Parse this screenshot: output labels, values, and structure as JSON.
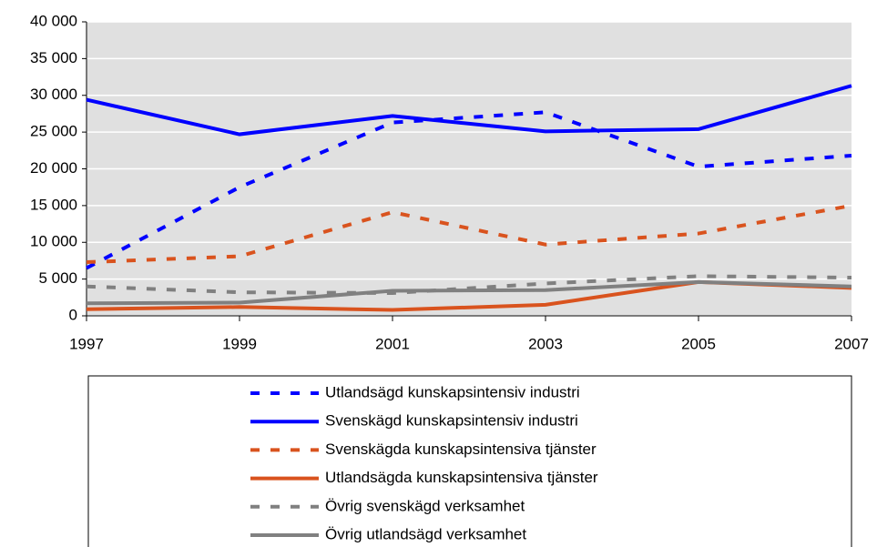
{
  "chart_data": {
    "type": "line",
    "x": [
      1997,
      1999,
      2001,
      2003,
      2005,
      2007
    ],
    "xlim": [
      1997,
      2007
    ],
    "xticks": [
      1997,
      1999,
      2001,
      2003,
      2005,
      2007
    ],
    "ylim": [
      0,
      40000
    ],
    "yticks": [
      0,
      {
        "value": 5000,
        "label": "5 000"
      },
      {
        "value": 10000,
        "label": "10 000"
      },
      {
        "value": 15000,
        "label": "15 000"
      },
      {
        "value": 20000,
        "label": "20 000"
      },
      {
        "value": 25000,
        "label": "25 000"
      },
      {
        "value": 30000,
        "label": "30 000"
      },
      {
        "value": 35000,
        "label": "35 000"
      },
      {
        "value": 40000,
        "label": "40 000"
      }
    ],
    "grid": true,
    "series": [
      {
        "name": "Utlandsägd kunskapsintensiv industri",
        "color": "#0000ff",
        "style": "dashed",
        "values": [
          6500,
          17500,
          26300,
          27700,
          20300,
          21800
        ]
      },
      {
        "name": "Svenskägd kunskapsintensiv industri",
        "color": "#0000ff",
        "style": "solid",
        "values": [
          29400,
          24700,
          27200,
          25100,
          25400,
          31300
        ]
      },
      {
        "name": "Svenskägda kunskapsintensiva tjänster",
        "color": "#d9531e",
        "style": "dashed",
        "values": [
          7300,
          8100,
          14100,
          9700,
          11200,
          15000
        ]
      },
      {
        "name": "Utlandsägda kunskapsintensiva tjänster",
        "color": "#d9531e",
        "style": "solid",
        "values": [
          900,
          1200,
          800,
          1500,
          4600,
          3800
        ]
      },
      {
        "name": "Övrig svenskägd verksamhet",
        "color": "#808080",
        "style": "dashed",
        "values": [
          4000,
          3200,
          3100,
          4400,
          5400,
          5200
        ]
      },
      {
        "name": "Övrig utlandsägd verksamhet",
        "color": "#808080",
        "style": "solid",
        "values": [
          1700,
          1800,
          3400,
          3500,
          4600,
          4000
        ]
      }
    ]
  }
}
